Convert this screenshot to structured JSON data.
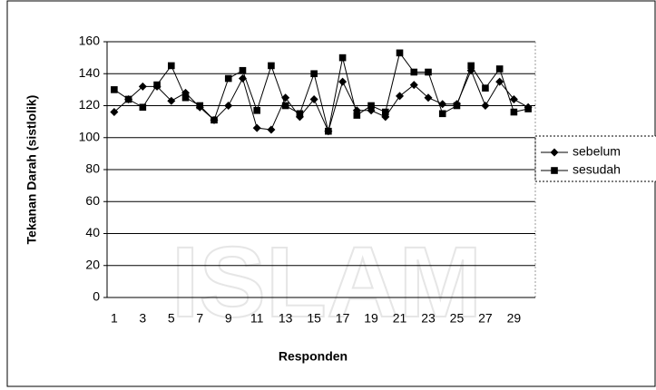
{
  "chart_data": {
    "type": "line",
    "x_label": "Responden",
    "y_label": "Tekanan Darah (sistlolik)",
    "watermark": "ISLAM",
    "categories": [
      1,
      null,
      3,
      null,
      5,
      null,
      7,
      null,
      9,
      null,
      11,
      null,
      13,
      null,
      15,
      null,
      17,
      null,
      19,
      null,
      21,
      null,
      23,
      null,
      25,
      null,
      27,
      null,
      29,
      null
    ],
    "series": [
      {
        "name": "sebelum",
        "color": "#000000",
        "marker": "diamond",
        "values": [
          116,
          124,
          132,
          132,
          123,
          128,
          119,
          111,
          120,
          137,
          106,
          105,
          125,
          113,
          124,
          104,
          135,
          117,
          117,
          113,
          126,
          133,
          125,
          121,
          121,
          142,
          120,
          135,
          124,
          119
        ]
      },
      {
        "name": "sesudah",
        "color": "#000000",
        "marker": "square",
        "values": [
          130,
          124,
          119,
          133,
          145,
          125,
          120,
          111,
          137,
          142,
          117,
          145,
          120,
          115,
          140,
          104,
          150,
          114,
          120,
          116,
          153,
          141,
          141,
          115,
          120,
          145,
          131,
          143,
          116,
          118
        ]
      }
    ],
    "ylim": [
      0,
      160
    ],
    "yticks": [
      0,
      20,
      40,
      60,
      80,
      100,
      120,
      140,
      160
    ],
    "grid": true,
    "legend": "right"
  }
}
